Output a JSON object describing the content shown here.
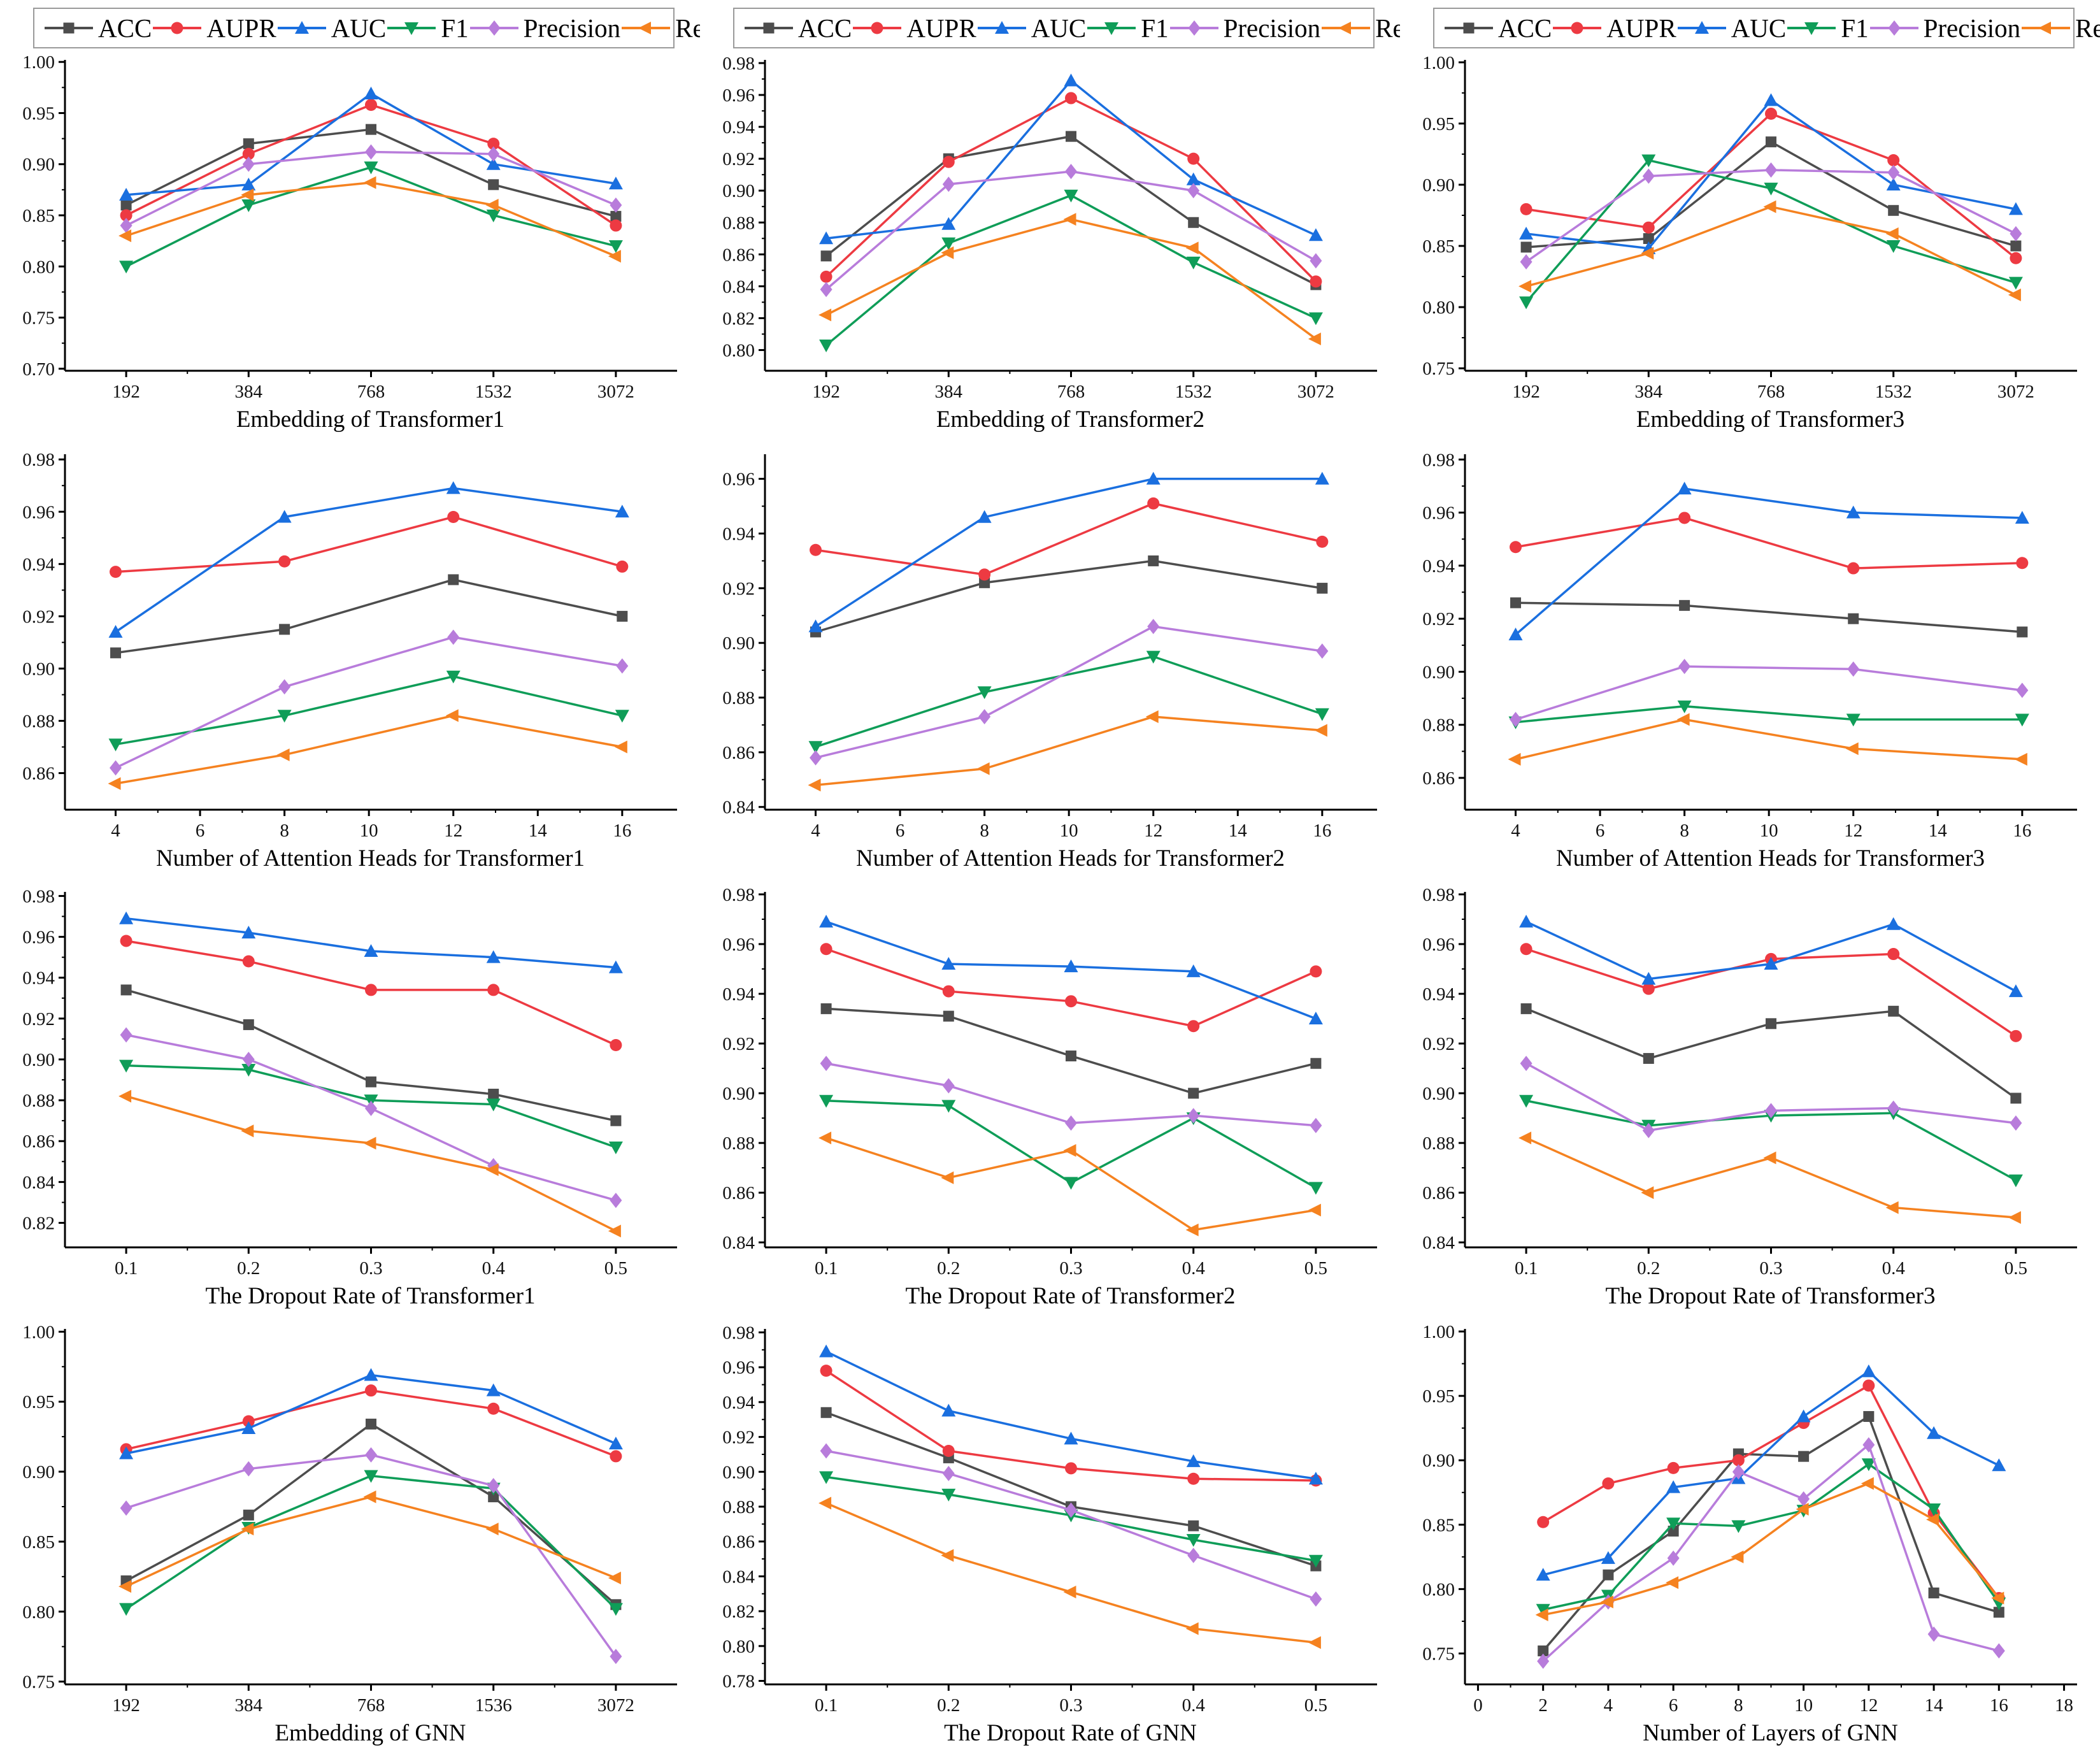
{
  "legend": {
    "series": [
      {
        "name": "ACC",
        "color": "#4d4d4d",
        "marker": "square"
      },
      {
        "name": "AUPR",
        "color": "#ed3a42",
        "marker": "circle"
      },
      {
        "name": "AUC",
        "color": "#1a6fdf",
        "marker": "triangle-up"
      },
      {
        "name": "F1",
        "color": "#0f9d58",
        "marker": "triangle-down"
      },
      {
        "name": "Precision",
        "color": "#b87cdb",
        "marker": "diamond"
      },
      {
        "name": "Recall",
        "color": "#f58220",
        "marker": "triangle-left"
      }
    ]
  },
  "chart_data": [
    {
      "type": "line",
      "xlabel": "Embedding of Transformer1",
      "x_labels": [
        "192",
        "384",
        "768",
        "1532",
        "3072"
      ],
      "ylim": [
        0.698,
        1.002
      ],
      "yticks": [
        0.7,
        0.75,
        0.8,
        0.85,
        0.9,
        0.95,
        1.0
      ],
      "series": {
        "ACC": [
          0.86,
          0.92,
          0.934,
          0.88,
          0.849
        ],
        "AUPR": [
          0.85,
          0.91,
          0.958,
          0.92,
          0.84
        ],
        "AUC": [
          0.87,
          0.88,
          0.969,
          0.9,
          0.881
        ],
        "F1": [
          0.8,
          0.86,
          0.897,
          0.85,
          0.82
        ],
        "Precision": [
          0.84,
          0.9,
          0.912,
          0.91,
          0.86
        ],
        "Recall": [
          0.83,
          0.87,
          0.882,
          0.86,
          0.81
        ]
      }
    },
    {
      "type": "line",
      "xlabel": "Embedding of Transformer2",
      "x_labels": [
        "192",
        "384",
        "768",
        "1532",
        "3072"
      ],
      "ylim": [
        0.787,
        0.982
      ],
      "yticks": [
        0.8,
        0.82,
        0.84,
        0.86,
        0.88,
        0.9,
        0.92,
        0.94,
        0.96,
        0.98
      ],
      "series": {
        "ACC": [
          0.859,
          0.92,
          0.934,
          0.88,
          0.841
        ],
        "AUPR": [
          0.846,
          0.918,
          0.958,
          0.92,
          0.843
        ],
        "AUC": [
          0.87,
          0.879,
          0.969,
          0.907,
          0.872
        ],
        "F1": [
          0.803,
          0.867,
          0.897,
          0.855,
          0.82
        ],
        "Precision": [
          0.838,
          0.904,
          0.912,
          0.9,
          0.856
        ],
        "Recall": [
          0.822,
          0.861,
          0.882,
          0.864,
          0.807
        ]
      }
    },
    {
      "type": "line",
      "xlabel": "Embedding of Transformer3",
      "x_labels": [
        "192",
        "384",
        "768",
        "1532",
        "3072"
      ],
      "ylim": [
        0.748,
        1.002
      ],
      "yticks": [
        0.75,
        0.8,
        0.85,
        0.9,
        0.95,
        1.0
      ],
      "series": {
        "ACC": [
          0.849,
          0.856,
          0.935,
          0.879,
          0.85
        ],
        "AUPR": [
          0.88,
          0.865,
          0.958,
          0.92,
          0.84
        ],
        "AUC": [
          0.86,
          0.848,
          0.969,
          0.9,
          0.88
        ],
        "F1": [
          0.804,
          0.92,
          0.897,
          0.85,
          0.82
        ],
        "Precision": [
          0.837,
          0.907,
          0.912,
          0.91,
          0.86
        ],
        "Recall": [
          0.817,
          0.844,
          0.882,
          0.86,
          0.81
        ]
      }
    },
    {
      "type": "line",
      "xlabel": "Number of Attention Heads for Transformer1",
      "x_values": [
        4,
        8,
        12,
        16
      ],
      "xlim": [
        2.8,
        17.3
      ],
      "xticks": [
        4,
        6,
        8,
        10,
        12,
        14,
        16
      ],
      "ylim": [
        0.846,
        0.982
      ],
      "yticks": [
        0.86,
        0.88,
        0.9,
        0.92,
        0.94,
        0.96,
        0.98
      ],
      "series": {
        "ACC": [
          0.906,
          0.915,
          0.934,
          0.92
        ],
        "AUPR": [
          0.937,
          0.941,
          0.958,
          0.939
        ],
        "AUC": [
          0.914,
          0.958,
          0.969,
          0.96
        ],
        "F1": [
          0.871,
          0.882,
          0.897,
          0.882
        ],
        "Precision": [
          0.862,
          0.893,
          0.912,
          0.901
        ],
        "Recall": [
          0.856,
          0.867,
          0.882,
          0.87
        ]
      }
    },
    {
      "type": "line",
      "xlabel": "Number of Attention Heads for Transformer2",
      "x_values": [
        4,
        8,
        12,
        16
      ],
      "xlim": [
        2.8,
        17.3
      ],
      "xticks": [
        4,
        6,
        8,
        10,
        12,
        14,
        16
      ],
      "ylim": [
        0.839,
        0.969
      ],
      "yticks": [
        0.84,
        0.86,
        0.88,
        0.9,
        0.92,
        0.94,
        0.96
      ],
      "series": {
        "ACC": [
          0.904,
          0.922,
          0.93,
          0.92
        ],
        "AUPR": [
          0.934,
          0.925,
          0.951,
          0.937
        ],
        "AUC": [
          0.906,
          0.946,
          0.96,
          0.96
        ],
        "F1": [
          0.862,
          0.882,
          0.895,
          0.874
        ],
        "Precision": [
          0.858,
          0.873,
          0.906,
          0.897
        ],
        "Recall": [
          0.848,
          0.854,
          0.873,
          0.868
        ]
      }
    },
    {
      "type": "line",
      "xlabel": "Number of Attention Heads for Transformer3",
      "x_values": [
        4,
        8,
        12,
        16
      ],
      "xlim": [
        2.8,
        17.3
      ],
      "xticks": [
        4,
        6,
        8,
        10,
        12,
        14,
        16
      ],
      "ylim": [
        0.848,
        0.982
      ],
      "yticks": [
        0.86,
        0.88,
        0.9,
        0.92,
        0.94,
        0.96,
        0.98
      ],
      "series": {
        "ACC": [
          0.926,
          0.925,
          0.92,
          0.915
        ],
        "AUPR": [
          0.947,
          0.958,
          0.939,
          0.941
        ],
        "AUC": [
          0.914,
          0.969,
          0.96,
          0.958
        ],
        "F1": [
          0.881,
          0.887,
          0.882,
          0.882
        ],
        "Precision": [
          0.882,
          0.902,
          0.901,
          0.893
        ],
        "Recall": [
          0.867,
          0.882,
          0.871,
          0.867
        ]
      }
    },
    {
      "type": "line",
      "xlabel": "The Dropout Rate of Transformer1",
      "x_labels": [
        "0.1",
        "0.2",
        "0.3",
        "0.4",
        "0.5"
      ],
      "ylim": [
        0.808,
        0.982
      ],
      "yticks": [
        0.82,
        0.84,
        0.86,
        0.88,
        0.9,
        0.92,
        0.94,
        0.96,
        0.98
      ],
      "series": {
        "ACC": [
          0.934,
          0.917,
          0.889,
          0.883,
          0.87
        ],
        "AUPR": [
          0.958,
          0.948,
          0.934,
          0.934,
          0.907
        ],
        "AUC": [
          0.969,
          0.962,
          0.953,
          0.95,
          0.945
        ],
        "F1": [
          0.897,
          0.895,
          0.88,
          0.878,
          0.857
        ],
        "Precision": [
          0.912,
          0.9,
          0.876,
          0.848,
          0.831
        ],
        "Recall": [
          0.882,
          0.865,
          0.859,
          0.846,
          0.816
        ]
      }
    },
    {
      "type": "line",
      "xlabel": "The Dropout Rate of Transformer2",
      "x_labels": [
        "0.1",
        "0.2",
        "0.3",
        "0.4",
        "0.5"
      ],
      "ylim": [
        0.838,
        0.981
      ],
      "yticks": [
        0.84,
        0.86,
        0.88,
        0.9,
        0.92,
        0.94,
        0.96,
        0.98
      ],
      "series": {
        "ACC": [
          0.934,
          0.931,
          0.915,
          0.9,
          0.912
        ],
        "AUPR": [
          0.958,
          0.941,
          0.937,
          0.927,
          0.949
        ],
        "AUC": [
          0.969,
          0.952,
          0.951,
          0.949,
          0.93
        ],
        "F1": [
          0.897,
          0.895,
          0.864,
          0.89,
          0.862
        ],
        "Precision": [
          0.912,
          0.903,
          0.888,
          0.891,
          0.887
        ],
        "Recall": [
          0.882,
          0.866,
          0.877,
          0.845,
          0.853
        ]
      }
    },
    {
      "type": "line",
      "xlabel": "The Dropout Rate of Transformer3",
      "x_labels": [
        "0.1",
        "0.2",
        "0.3",
        "0.4",
        "0.5"
      ],
      "ylim": [
        0.838,
        0.981
      ],
      "yticks": [
        0.84,
        0.86,
        0.88,
        0.9,
        0.92,
        0.94,
        0.96,
        0.98
      ],
      "series": {
        "ACC": [
          0.934,
          0.914,
          0.928,
          0.933,
          0.898
        ],
        "AUPR": [
          0.958,
          0.942,
          0.954,
          0.956,
          0.923
        ],
        "AUC": [
          0.969,
          0.946,
          0.952,
          0.968,
          0.941
        ],
        "F1": [
          0.897,
          0.887,
          0.891,
          0.892,
          0.865
        ],
        "Precision": [
          0.912,
          0.885,
          0.893,
          0.894,
          0.888
        ],
        "Recall": [
          0.882,
          0.86,
          0.874,
          0.854,
          0.85
        ]
      }
    },
    {
      "type": "line",
      "xlabel": "Embedding of GNN",
      "x_labels": [
        "192",
        "384",
        "768",
        "1536",
        "3072"
      ],
      "ylim": [
        0.748,
        1.002
      ],
      "yticks": [
        0.75,
        0.8,
        0.85,
        0.9,
        0.95,
        1.0
      ],
      "series": {
        "ACC": [
          0.822,
          0.869,
          0.934,
          0.882,
          0.805
        ],
        "AUPR": [
          0.916,
          0.936,
          0.958,
          0.945,
          0.911
        ],
        "AUC": [
          0.913,
          0.931,
          0.969,
          0.958,
          0.92
        ],
        "F1": [
          0.802,
          0.86,
          0.897,
          0.888,
          0.802
        ],
        "Precision": [
          0.874,
          0.902,
          0.912,
          0.89,
          0.768
        ],
        "Recall": [
          0.818,
          0.859,
          0.882,
          0.859,
          0.824
        ]
      }
    },
    {
      "type": "line",
      "xlabel": "The Dropout Rate of GNN",
      "x_labels": [
        "0.1",
        "0.2",
        "0.3",
        "0.4",
        "0.5"
      ],
      "ylim": [
        0.778,
        0.982
      ],
      "yticks": [
        0.78,
        0.8,
        0.82,
        0.84,
        0.86,
        0.88,
        0.9,
        0.92,
        0.94,
        0.96,
        0.98
      ],
      "series": {
        "ACC": [
          0.934,
          0.908,
          0.88,
          0.869,
          0.846
        ],
        "AUPR": [
          0.958,
          0.912,
          0.902,
          0.896,
          0.895
        ],
        "AUC": [
          0.969,
          0.935,
          0.919,
          0.906,
          0.896
        ],
        "F1": [
          0.897,
          0.887,
          0.875,
          0.861,
          0.849
        ],
        "Precision": [
          0.912,
          0.899,
          0.878,
          0.852,
          0.827
        ],
        "Recall": [
          0.882,
          0.852,
          0.831,
          0.81,
          0.802
        ]
      }
    },
    {
      "type": "line",
      "xlabel": "Number of Layers of GNN",
      "x_values": [
        2,
        4,
        6,
        8,
        10,
        12,
        14,
        16
      ],
      "xlim": [
        -0.4,
        18.4
      ],
      "xticks": [
        0,
        2,
        4,
        6,
        8,
        10,
        12,
        14,
        16,
        18
      ],
      "ylim": [
        0.726,
        1.002
      ],
      "yticks": [
        0.75,
        0.8,
        0.85,
        0.9,
        0.95,
        1.0
      ],
      "series": {
        "ACC": [
          0.752,
          0.811,
          0.845,
          0.905,
          0.903,
          0.934,
          0.797,
          0.782
        ],
        "AUPR": [
          0.852,
          0.882,
          0.894,
          0.9,
          0.929,
          0.958,
          0.859,
          0.793
        ],
        "AUC": [
          0.811,
          0.824,
          0.879,
          0.886,
          0.934,
          0.969,
          0.921,
          0.896
        ],
        "F1": [
          0.784,
          0.795,
          0.851,
          0.849,
          0.861,
          0.897,
          0.862,
          0.789
        ],
        "Precision": [
          0.744,
          0.79,
          0.824,
          0.891,
          0.87,
          0.912,
          0.765,
          0.752
        ],
        "Recall": [
          0.78,
          0.79,
          0.805,
          0.825,
          0.862,
          0.882,
          0.854,
          0.793
        ]
      }
    }
  ]
}
